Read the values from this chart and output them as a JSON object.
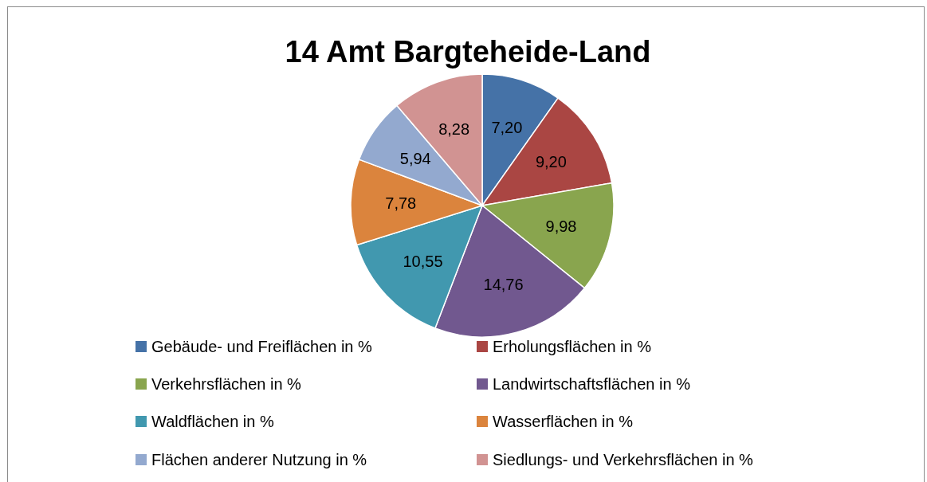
{
  "chart_data": {
    "type": "pie",
    "title": "14 Amt Bargteheide-Land",
    "categories": [
      "Gebäude- und Freiflächen in %",
      "Erholungsflächen in %",
      "Verkehrsflächen in %",
      "Landwirtschaftsflächen in %",
      "Waldflächen in %",
      "Wasserflächen in %",
      "Flächen anderer Nutzung in %",
      "Siedlungs- und Verkehrsflächen in %"
    ],
    "values": [
      7.2,
      9.2,
      9.98,
      14.76,
      10.55,
      7.78,
      5.94,
      8.28
    ],
    "value_labels": [
      "7,20",
      "9,20",
      "9,98",
      "14,76",
      "10,55",
      "7,78",
      "5,94",
      "8,28"
    ],
    "colors": [
      "#4572a7",
      "#aa4643",
      "#89a54e",
      "#71588f",
      "#4198af",
      "#db843d",
      "#93a9cf",
      "#d19392"
    ],
    "legend": "bottom"
  }
}
